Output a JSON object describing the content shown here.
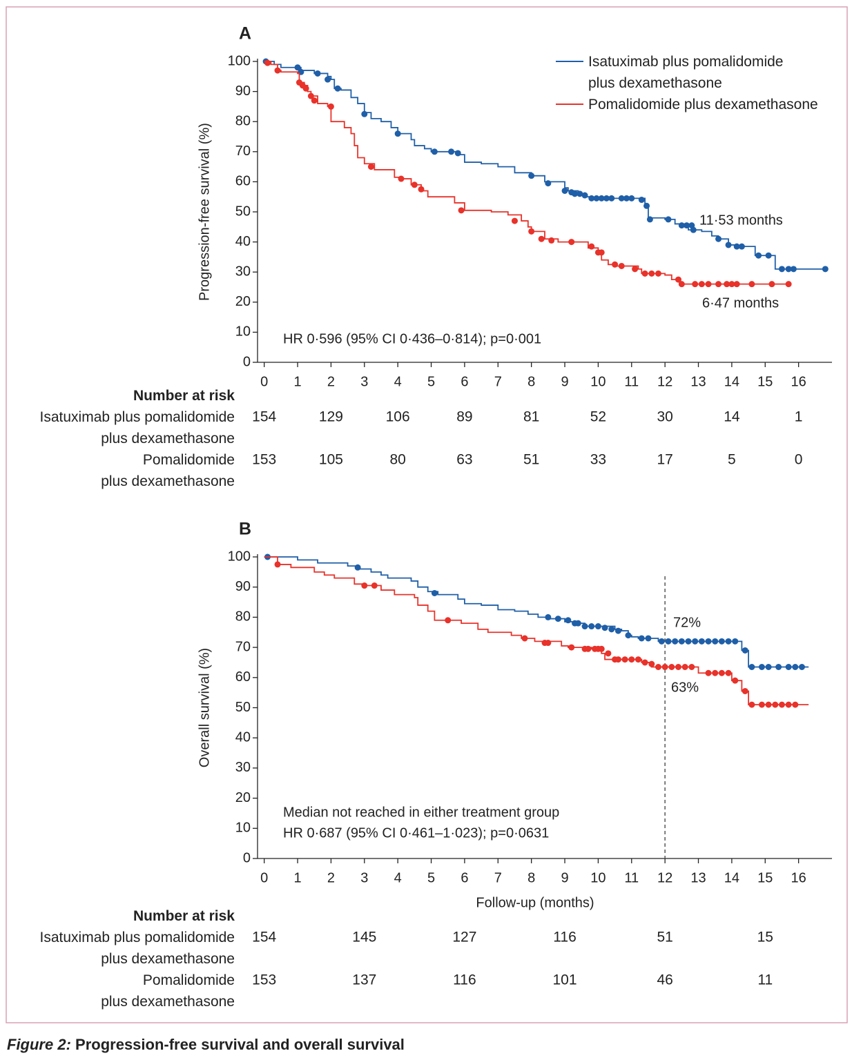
{
  "chart_data": [
    {
      "type": "line",
      "step": true,
      "panel_label": "A",
      "ylabel": "Progression-free survival (%)",
      "xlim": [
        -0.2,
        17
      ],
      "ylim": [
        0,
        100
      ],
      "xticks": [
        0,
        1,
        2,
        3,
        4,
        5,
        6,
        7,
        8,
        9,
        10,
        11,
        12,
        13,
        14,
        15,
        16
      ],
      "yticks": [
        0,
        10,
        20,
        30,
        40,
        50,
        60,
        70,
        80,
        90,
        100
      ],
      "legend": "upper right",
      "series": [
        {
          "name": "Isatuximab plus pomalidomide\nplus dexamethasone",
          "color": "#1f5fa8",
          "x": [
            0,
            0.3,
            0.5,
            1,
            1.1,
            1.5,
            1.9,
            2,
            2.1,
            2.3,
            2.6,
            2.8,
            3,
            3.2,
            3.5,
            3.8,
            4,
            4.4,
            4.5,
            4.8,
            5,
            5.6,
            5.8,
            6,
            6.5,
            7,
            7.5,
            8,
            8.4,
            9,
            9.1,
            9.4,
            9.6,
            9.8,
            11.2,
            11.4,
            11.5,
            12,
            12.3,
            12.7,
            13.1,
            13.4,
            13.6,
            13.9,
            14.2,
            14.7,
            15.2,
            15.3,
            16.8
          ],
          "values": [
            100,
            99,
            98,
            98,
            97,
            96,
            95,
            94,
            91,
            90.5,
            88,
            86,
            83,
            81,
            80,
            78,
            76,
            74,
            72,
            71,
            70,
            70,
            69,
            66.5,
            66,
            65,
            63,
            62,
            60,
            58,
            57,
            56,
            55,
            54.5,
            54.5,
            52,
            48,
            47.5,
            46,
            44,
            43.5,
            42,
            41,
            39,
            38.5,
            35.5,
            35.5,
            31,
            31
          ],
          "censor": {
            "x": [
              0.05,
              1,
              1.1,
              1.6,
              1.9,
              2.2,
              3,
              4,
              5.1,
              5.6,
              5.8,
              8,
              8.5,
              9,
              9.2,
              9.3,
              9.45,
              9.6,
              9.8,
              9.95,
              10.1,
              10.25,
              10.4,
              10.7,
              10.85,
              11,
              11.3,
              11.45,
              11.55,
              12.1,
              12.5,
              12.65,
              12.8,
              12.85,
              13.6,
              13.9,
              14.15,
              14.3,
              14.8,
              15.1,
              15.5,
              15.7,
              15.85,
              16.8
            ],
            "values": [
              100,
              98,
              96.5,
              96,
              94,
              91,
              82.5,
              76,
              70,
              70,
              69.5,
              62,
              59.5,
              57,
              56.5,
              56,
              56,
              55.5,
              54.5,
              54.5,
              54.5,
              54.5,
              54.5,
              54.5,
              54.5,
              54.5,
              54,
              52,
              47.5,
              47.5,
              45.5,
              45.5,
              45.5,
              44,
              41,
              39,
              38.5,
              38.5,
              35.5,
              35.5,
              31,
              31,
              31,
              31
            ]
          }
        },
        {
          "name": "Pomalidomide plus dexamethasone",
          "color": "#e8322a",
          "x": [
            0,
            0.2,
            0.4,
            0.5,
            1,
            1.05,
            1.2,
            1.3,
            1.4,
            1.6,
            1.9,
            2,
            2.3,
            2.4,
            2.6,
            2.7,
            2.8,
            3,
            3.3,
            3.8,
            3.9,
            4.1,
            4.4,
            4.7,
            4.9,
            5.6,
            5.7,
            6,
            6.8,
            7.3,
            7.7,
            7.9,
            8,
            8.4,
            8.8,
            9.6,
            9.7,
            10,
            10.1,
            10.3,
            10.5,
            11.2,
            11.3,
            12,
            12.2,
            12.45,
            15.7
          ],
          "values": [
            100,
            99,
            97,
            96.5,
            96,
            93,
            92,
            90,
            88.5,
            86,
            85,
            80,
            80,
            78,
            76,
            72,
            68,
            66,
            64,
            64,
            61.5,
            61,
            59,
            57,
            55,
            55,
            53,
            50.5,
            50,
            49,
            47,
            45,
            43.5,
            41,
            40,
            40,
            38,
            36.5,
            34,
            32.5,
            32,
            31,
            29.5,
            29,
            27.5,
            26,
            26
          ],
          "censor": {
            "x": [
              0.1,
              0.4,
              1.05,
              1.15,
              1.25,
              1.4,
              1.5,
              2,
              3.2,
              4.1,
              4.5,
              4.7,
              5.9,
              7.5,
              8,
              8.3,
              8.6,
              9.2,
              9.8,
              10,
              10.1,
              10.5,
              10.7,
              11.1,
              11.4,
              11.6,
              11.8,
              12.4,
              12.5,
              12.9,
              13.1,
              13.3,
              13.6,
              13.85,
              14,
              14.15,
              14.6,
              15.2,
              15.7
            ],
            "values": [
              99.5,
              97,
              93,
              92,
              91,
              88.5,
              87,
              85,
              65,
              61,
              59,
              57.5,
              50.5,
              47,
              43.5,
              41,
              40.5,
              40,
              38.5,
              36.5,
              36.5,
              32.5,
              32,
              31,
              29.5,
              29.5,
              29.5,
              27.5,
              26,
              26,
              26,
              26,
              26,
              26,
              26,
              26,
              26,
              26,
              26
            ]
          }
        }
      ],
      "annotations": [
        "11·53 months",
        "6·47 months",
        "HR 0·596 (95% CI 0·436–0·814); p=0·001"
      ],
      "risk_table": {
        "title": "Number at risk",
        "rows": [
          {
            "label": "Isatuximab plus pomalidomide\nplus dexamethasone",
            "values": [
              154,
              129,
              106,
              89,
              81,
              52,
              30,
              14,
              1
            ]
          },
          {
            "label": "Pomalidomide\nplus dexamethasone",
            "values": [
              153,
              105,
              80,
              63,
              51,
              33,
              17,
              5,
              0
            ]
          }
        ]
      }
    },
    {
      "type": "line",
      "step": true,
      "panel_label": "B",
      "ylabel": "Overall survival (%)",
      "xlabel": "Follow-up (months)",
      "xlim": [
        -0.2,
        17
      ],
      "ylim": [
        0,
        100
      ],
      "xticks": [
        0,
        1,
        2,
        3,
        4,
        5,
        6,
        7,
        8,
        9,
        10,
        11,
        12,
        13,
        14,
        15,
        16
      ],
      "yticks": [
        0,
        10,
        20,
        30,
        40,
        50,
        60,
        70,
        80,
        90,
        100
      ],
      "vline": 12,
      "series": [
        {
          "color": "#1f5fa8",
          "x": [
            0,
            0.1,
            1,
            1.6,
            2.5,
            2.8,
            3.2,
            3.5,
            3.7,
            4.4,
            4.6,
            4.9,
            5.2,
            5.8,
            6,
            6.5,
            7,
            7.5,
            7.9,
            8.2,
            8.5,
            9,
            9.3,
            9.6,
            10.5,
            10.7,
            10.9,
            11,
            11.2,
            11.8,
            14.2,
            14.3,
            14.5,
            16.3
          ],
          "values": [
            100,
            100,
            99,
            98,
            97,
            96,
            95,
            94,
            93,
            92,
            90,
            88.5,
            87.5,
            86,
            84.5,
            84,
            82.5,
            82,
            81,
            80,
            79.5,
            78.5,
            78,
            77,
            76,
            75.5,
            74,
            73.5,
            73,
            72,
            72,
            69,
            63.5,
            63.5
          ],
          "censor": {
            "x": [
              0.1,
              2.8,
              5.1,
              8.5,
              8.8,
              9.1,
              9.3,
              9.4,
              9.6,
              9.8,
              10,
              10.2,
              10.4,
              10.6,
              10.9,
              11.3,
              11.5,
              11.9,
              12.1,
              12.3,
              12.5,
              12.7,
              12.9,
              13.1,
              13.3,
              13.5,
              13.7,
              13.9,
              14.1,
              14.4,
              14.6,
              14.9,
              15.1,
              15.4,
              15.7,
              15.9,
              16.1
            ],
            "values": [
              100,
              96.5,
              88,
              80,
              79.5,
              79,
              78,
              78,
              77,
              77,
              77,
              76.5,
              76,
              75.5,
              74,
              73,
              73,
              72,
              72,
              72,
              72,
              72,
              72,
              72,
              72,
              72,
              72,
              72,
              72,
              69,
              63.5,
              63.5,
              63.5,
              63.5,
              63.5,
              63.5,
              63.5
            ]
          }
        },
        {
          "color": "#e8322a",
          "x": [
            0,
            0.4,
            0.8,
            1.5,
            1.8,
            2.1,
            2.7,
            3,
            3.5,
            3.9,
            4.5,
            4.6,
            4.9,
            5.1,
            5.6,
            5.9,
            6.4,
            6.7,
            7.4,
            7.7,
            8.1,
            8.9,
            9.1,
            9.8,
            10.1,
            10.2,
            11.3,
            11.6,
            12.9,
            13,
            14,
            14.3,
            14.5,
            16.3
          ],
          "values": [
            100,
            97.5,
            96.5,
            95,
            94,
            93,
            91,
            90.5,
            89,
            87.5,
            86.5,
            84,
            82,
            79,
            79,
            78,
            76,
            75,
            74,
            73,
            72,
            70.5,
            70,
            69.5,
            68,
            66,
            65,
            63.5,
            63.5,
            61.5,
            59,
            55.5,
            51,
            51
          ],
          "censor": {
            "x": [
              0.4,
              3,
              3.3,
              5.5,
              7.8,
              8.4,
              8.5,
              9.2,
              9.6,
              9.7,
              9.9,
              10,
              10.1,
              10.3,
              10.5,
              10.6,
              10.8,
              11,
              11.2,
              11.4,
              11.6,
              11.8,
              12,
              12.2,
              12.4,
              12.6,
              12.8,
              13.3,
              13.5,
              13.7,
              13.9,
              14.1,
              14.4,
              14.6,
              14.9,
              15.1,
              15.3,
              15.5,
              15.7,
              15.9
            ],
            "values": [
              97.5,
              90.5,
              90.5,
              79,
              73,
              71.5,
              71.5,
              70,
              69.5,
              69.5,
              69.5,
              69.5,
              69.5,
              68,
              66,
              66,
              66,
              66,
              66,
              65,
              64.5,
              63.5,
              63.5,
              63.5,
              63.5,
              63.5,
              63.5,
              61.5,
              61.5,
              61.5,
              61.5,
              59,
              55.5,
              51,
              51,
              51,
              51,
              51,
              51,
              51
            ]
          }
        }
      ],
      "annotations": [
        "72%",
        "63%",
        "Median not reached in either treatment group",
        "HR 0·687 (95% CI 0·461–1·023); p=0·0631"
      ],
      "risk_table": {
        "title": "Number at risk",
        "rows": [
          {
            "label": "Isatuximab plus pomalidomide\nplus dexamethasone",
            "values": [
              154,
              145,
              127,
              116,
              51,
              15
            ]
          },
          {
            "label": "Pomalidomide\nplus dexamethasone",
            "values": [
              153,
              137,
              116,
              101,
              46,
              11
            ]
          }
        ]
      }
    }
  ],
  "caption": {
    "label": "Figure 2:",
    "text": "Progression-free survival and overall survival"
  }
}
